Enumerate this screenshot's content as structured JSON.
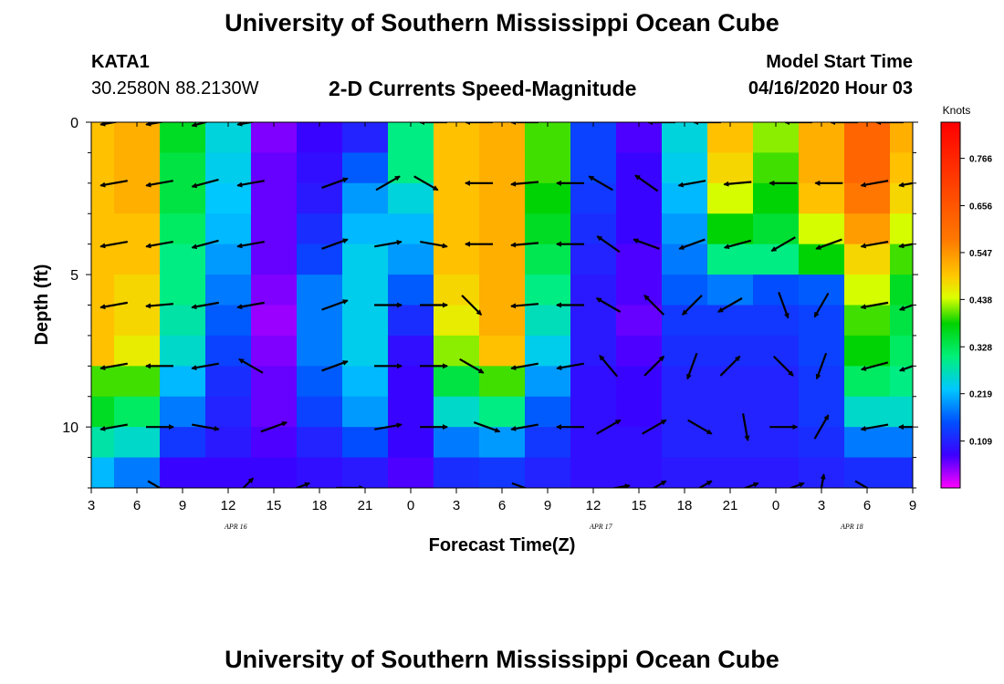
{
  "header": {
    "title": "University of Southern Mississippi Ocean Cube",
    "station": "KATA1",
    "coordinates": "30.2580N 88.2130W",
    "subtitle": "2-D Currents Speed-Magnitude",
    "model_start_label": "Model Start Time",
    "model_start_value": "04/16/2020 Hour 03"
  },
  "footer": {
    "title": "University of Southern Mississippi Ocean Cube"
  },
  "chart_data": {
    "type": "heatmap",
    "title": "2-D Currents Speed-Magnitude",
    "xlabel": "Forecast Time(Z)",
    "ylabel": "Depth (ft)",
    "x_unit": "forecast hour since 04/16/2020 03Z",
    "xlim": [
      0,
      54
    ],
    "ylim": [
      0,
      12
    ],
    "x_ticks": [
      {
        "hour": 0,
        "label": "3"
      },
      {
        "hour": 3,
        "label": "6"
      },
      {
        "hour": 6,
        "label": "9"
      },
      {
        "hour": 9,
        "label": "12"
      },
      {
        "hour": 12,
        "label": "15"
      },
      {
        "hour": 15,
        "label": "18"
      },
      {
        "hour": 18,
        "label": "21"
      },
      {
        "hour": 21,
        "label": "0"
      },
      {
        "hour": 24,
        "label": "3"
      },
      {
        "hour": 27,
        "label": "6"
      },
      {
        "hour": 30,
        "label": "9"
      },
      {
        "hour": 33,
        "label": "12"
      },
      {
        "hour": 36,
        "label": "15"
      },
      {
        "hour": 39,
        "label": "18"
      },
      {
        "hour": 42,
        "label": "21"
      },
      {
        "hour": 45,
        "label": "0"
      },
      {
        "hour": 48,
        "label": "3"
      },
      {
        "hour": 51,
        "label": "6"
      },
      {
        "hour": 54,
        "label": "9"
      }
    ],
    "date_labels": [
      {
        "hour": 9.5,
        "label": "APR 16"
      },
      {
        "hour": 33.5,
        "label": "APR 17"
      },
      {
        "hour": 50,
        "label": "APR 18"
      }
    ],
    "y_ticks": [
      {
        "depth": 0,
        "label": "0"
      },
      {
        "depth": 5,
        "label": "5"
      },
      {
        "depth": 10,
        "label": "10"
      }
    ],
    "colorbar": {
      "label": "Knots",
      "min": 0.0,
      "max": 0.85,
      "ticks": [
        "0.766",
        "0.656",
        "0.547",
        "0.438",
        "0.328",
        "0.219",
        "0.109"
      ],
      "tick_values": [
        0.766,
        0.656,
        0.547,
        0.438,
        0.328,
        0.219,
        0.109
      ]
    },
    "cell_hours": 3,
    "depth_levels": [
      0.5,
      1.5,
      2.5,
      3.5,
      4.5,
      5.5,
      6.5,
      7.5,
      8.5,
      9.5,
      10.5,
      11.5
    ],
    "time_hours": [
      0,
      3,
      6,
      9,
      12,
      15,
      18,
      21,
      24,
      27,
      30,
      33,
      36,
      39,
      42,
      45,
      48,
      51,
      54
    ],
    "speed": [
      [
        0.5,
        0.52,
        0.36,
        0.25,
        0.05,
        0.08,
        0.11,
        0.3,
        0.5,
        0.52,
        0.4,
        0.14,
        0.07,
        0.25,
        0.5,
        0.42,
        0.52,
        0.62,
        0.52
      ],
      [
        0.5,
        0.52,
        0.34,
        0.24,
        0.06,
        0.09,
        0.16,
        0.3,
        0.5,
        0.52,
        0.4,
        0.14,
        0.08,
        0.24,
        0.48,
        0.4,
        0.52,
        0.62,
        0.5
      ],
      [
        0.5,
        0.52,
        0.34,
        0.23,
        0.06,
        0.1,
        0.2,
        0.25,
        0.5,
        0.52,
        0.38,
        0.13,
        0.08,
        0.22,
        0.44,
        0.38,
        0.5,
        0.58,
        0.48
      ],
      [
        0.5,
        0.5,
        0.32,
        0.22,
        0.06,
        0.12,
        0.22,
        0.22,
        0.5,
        0.52,
        0.36,
        0.12,
        0.08,
        0.2,
        0.38,
        0.35,
        0.44,
        0.54,
        0.44
      ],
      [
        0.5,
        0.5,
        0.3,
        0.2,
        0.06,
        0.14,
        0.24,
        0.2,
        0.5,
        0.52,
        0.33,
        0.11,
        0.07,
        0.18,
        0.3,
        0.3,
        0.38,
        0.48,
        0.4
      ],
      [
        0.5,
        0.48,
        0.3,
        0.18,
        0.05,
        0.18,
        0.24,
        0.16,
        0.48,
        0.52,
        0.3,
        0.1,
        0.07,
        0.16,
        0.18,
        0.15,
        0.16,
        0.44,
        0.36
      ],
      [
        0.5,
        0.48,
        0.28,
        0.16,
        0.04,
        0.18,
        0.24,
        0.12,
        0.46,
        0.52,
        0.27,
        0.1,
        0.06,
        0.13,
        0.13,
        0.13,
        0.14,
        0.4,
        0.34
      ],
      [
        0.5,
        0.46,
        0.26,
        0.14,
        0.05,
        0.18,
        0.24,
        0.09,
        0.42,
        0.5,
        0.24,
        0.1,
        0.07,
        0.12,
        0.12,
        0.12,
        0.14,
        0.38,
        0.32
      ],
      [
        0.4,
        0.4,
        0.22,
        0.12,
        0.06,
        0.16,
        0.22,
        0.08,
        0.34,
        0.4,
        0.2,
        0.09,
        0.08,
        0.11,
        0.11,
        0.11,
        0.13,
        0.32,
        0.3
      ],
      [
        0.36,
        0.32,
        0.18,
        0.11,
        0.06,
        0.14,
        0.2,
        0.08,
        0.26,
        0.3,
        0.16,
        0.09,
        0.08,
        0.11,
        0.11,
        0.11,
        0.13,
        0.26,
        0.26
      ],
      [
        0.28,
        0.26,
        0.13,
        0.1,
        0.07,
        0.11,
        0.15,
        0.08,
        0.18,
        0.2,
        0.13,
        0.09,
        0.09,
        0.11,
        0.11,
        0.11,
        0.12,
        0.18,
        0.18
      ],
      [
        0.22,
        0.18,
        0.08,
        0.08,
        0.08,
        0.09,
        0.1,
        0.07,
        0.12,
        0.13,
        0.11,
        0.09,
        0.09,
        0.1,
        0.1,
        0.1,
        0.11,
        0.12,
        0.12
      ]
    ],
    "vectors": [
      {
        "hour": 1.5,
        "depth": 0,
        "angle": 190
      },
      {
        "hour": 4.5,
        "depth": 0,
        "angle": 190
      },
      {
        "hour": 7.5,
        "depth": 0,
        "angle": 195
      },
      {
        "hour": 10.5,
        "depth": 0,
        "angle": 190
      },
      {
        "hour": 22.5,
        "depth": 0,
        "angle": 180
      },
      {
        "hour": 25.5,
        "depth": 0,
        "angle": 180
      },
      {
        "hour": 28.5,
        "depth": 0,
        "angle": 180
      },
      {
        "hour": 37.5,
        "depth": 0,
        "angle": 180
      },
      {
        "hour": 40.5,
        "depth": 0,
        "angle": 180
      },
      {
        "hour": 46.5,
        "depth": 0,
        "angle": 180
      },
      {
        "hour": 49.5,
        "depth": 0,
        "angle": 180
      },
      {
        "hour": 52.5,
        "depth": 0,
        "angle": 180
      },
      {
        "hour": 1.5,
        "depth": 2,
        "angle": 190
      },
      {
        "hour": 4.5,
        "depth": 2,
        "angle": 190
      },
      {
        "hour": 7.5,
        "depth": 2,
        "angle": 195
      },
      {
        "hour": 10.5,
        "depth": 2,
        "angle": 190
      },
      {
        "hour": 16,
        "depth": 2,
        "angle": 20
      },
      {
        "hour": 19.5,
        "depth": 2,
        "angle": 30
      },
      {
        "hour": 22,
        "depth": 2,
        "angle": 330
      },
      {
        "hour": 25.5,
        "depth": 2,
        "angle": 180
      },
      {
        "hour": 28.5,
        "depth": 2,
        "angle": 185
      },
      {
        "hour": 31.5,
        "depth": 2,
        "angle": 180
      },
      {
        "hour": 33.5,
        "depth": 2,
        "angle": 150
      },
      {
        "hour": 36.5,
        "depth": 2,
        "angle": 145
      },
      {
        "hour": 39.5,
        "depth": 2,
        "angle": 190
      },
      {
        "hour": 42.5,
        "depth": 2,
        "angle": 185
      },
      {
        "hour": 45.5,
        "depth": 2,
        "angle": 180
      },
      {
        "hour": 48.5,
        "depth": 2,
        "angle": 180
      },
      {
        "hour": 51.5,
        "depth": 2,
        "angle": 190
      },
      {
        "hour": 54,
        "depth": 2,
        "angle": 190
      },
      {
        "hour": 1.5,
        "depth": 4,
        "angle": 190
      },
      {
        "hour": 4.5,
        "depth": 4,
        "angle": 190
      },
      {
        "hour": 7.5,
        "depth": 4,
        "angle": 195
      },
      {
        "hour": 10.5,
        "depth": 4,
        "angle": 190
      },
      {
        "hour": 16,
        "depth": 4,
        "angle": 20
      },
      {
        "hour": 19.5,
        "depth": 4,
        "angle": 10
      },
      {
        "hour": 22.5,
        "depth": 4,
        "angle": 350
      },
      {
        "hour": 25.5,
        "depth": 4,
        "angle": 180
      },
      {
        "hour": 28.5,
        "depth": 4,
        "angle": 185
      },
      {
        "hour": 31.5,
        "depth": 4,
        "angle": 180
      },
      {
        "hour": 34,
        "depth": 4,
        "angle": 145
      },
      {
        "hour": 36.5,
        "depth": 4,
        "angle": 160
      },
      {
        "hour": 39.5,
        "depth": 4,
        "angle": 200
      },
      {
        "hour": 42.5,
        "depth": 4,
        "angle": 195
      },
      {
        "hour": 45.5,
        "depth": 4,
        "angle": 210
      },
      {
        "hour": 48.5,
        "depth": 4,
        "angle": 200
      },
      {
        "hour": 51.5,
        "depth": 4,
        "angle": 190
      },
      {
        "hour": 54,
        "depth": 4,
        "angle": 190
      },
      {
        "hour": 1.5,
        "depth": 6,
        "angle": 190
      },
      {
        "hour": 4.5,
        "depth": 6,
        "angle": 185
      },
      {
        "hour": 7.5,
        "depth": 6,
        "angle": 190
      },
      {
        "hour": 10.5,
        "depth": 6,
        "angle": 190
      },
      {
        "hour": 16,
        "depth": 6,
        "angle": 20
      },
      {
        "hour": 19.5,
        "depth": 6,
        "angle": 0
      },
      {
        "hour": 22.5,
        "depth": 6,
        "angle": 0
      },
      {
        "hour": 25,
        "depth": 6,
        "angle": 315
      },
      {
        "hour": 28.5,
        "depth": 6,
        "angle": 185
      },
      {
        "hour": 31.5,
        "depth": 6,
        "angle": 180
      },
      {
        "hour": 34,
        "depth": 6,
        "angle": 150
      },
      {
        "hour": 37,
        "depth": 6,
        "angle": 135
      },
      {
        "hour": 39.5,
        "depth": 6,
        "angle": 225
      },
      {
        "hour": 42,
        "depth": 6,
        "angle": 210
      },
      {
        "hour": 45.5,
        "depth": 6,
        "angle": 290
      },
      {
        "hour": 48,
        "depth": 6,
        "angle": 240
      },
      {
        "hour": 51.5,
        "depth": 6,
        "angle": 190
      },
      {
        "hour": 54,
        "depth": 6,
        "angle": 200
      },
      {
        "hour": 1.5,
        "depth": 8,
        "angle": 190
      },
      {
        "hour": 4.5,
        "depth": 8,
        "angle": 180
      },
      {
        "hour": 7.5,
        "depth": 8,
        "angle": 190
      },
      {
        "hour": 10.5,
        "depth": 8,
        "angle": 150
      },
      {
        "hour": 16,
        "depth": 8,
        "angle": 20
      },
      {
        "hour": 19.5,
        "depth": 8,
        "angle": 0
      },
      {
        "hour": 22.5,
        "depth": 8,
        "angle": 0
      },
      {
        "hour": 25,
        "depth": 8,
        "angle": 330
      },
      {
        "hour": 28.5,
        "depth": 8,
        "angle": 190
      },
      {
        "hour": 31.5,
        "depth": 8,
        "angle": 190
      },
      {
        "hour": 34,
        "depth": 8,
        "angle": 130
      },
      {
        "hour": 37,
        "depth": 8,
        "angle": 45
      },
      {
        "hour": 39.5,
        "depth": 8,
        "angle": 250
      },
      {
        "hour": 42,
        "depth": 8,
        "angle": 45
      },
      {
        "hour": 45.5,
        "depth": 8,
        "angle": 315
      },
      {
        "hour": 48,
        "depth": 8,
        "angle": 250
      },
      {
        "hour": 51.5,
        "depth": 8,
        "angle": 195
      },
      {
        "hour": 54,
        "depth": 8,
        "angle": 200
      },
      {
        "hour": 1.5,
        "depth": 10,
        "angle": 190
      },
      {
        "hour": 4.5,
        "depth": 10,
        "angle": 0
      },
      {
        "hour": 7.5,
        "depth": 10,
        "angle": 350
      },
      {
        "hour": 12,
        "depth": 10,
        "angle": 20
      },
      {
        "hour": 19.5,
        "depth": 10,
        "angle": 10
      },
      {
        "hour": 22.5,
        "depth": 10,
        "angle": 0
      },
      {
        "hour": 26,
        "depth": 10,
        "angle": 340
      },
      {
        "hour": 28.5,
        "depth": 10,
        "angle": 190
      },
      {
        "hour": 31.5,
        "depth": 10,
        "angle": 180
      },
      {
        "hour": 34,
        "depth": 10,
        "angle": 30
      },
      {
        "hour": 37,
        "depth": 10,
        "angle": 30
      },
      {
        "hour": 40,
        "depth": 10,
        "angle": 330
      },
      {
        "hour": 43,
        "depth": 10,
        "angle": 280
      },
      {
        "hour": 45.5,
        "depth": 10,
        "angle": 0
      },
      {
        "hour": 48,
        "depth": 10,
        "angle": 60
      },
      {
        "hour": 51.5,
        "depth": 10,
        "angle": 190
      },
      {
        "hour": 54,
        "depth": 10,
        "angle": 180
      },
      {
        "hour": 4.5,
        "depth": 12,
        "angle": 330
      },
      {
        "hour": 10,
        "depth": 12,
        "angle": 45
      },
      {
        "hour": 13.5,
        "depth": 12,
        "angle": 20
      },
      {
        "hour": 17,
        "depth": 12,
        "angle": 0
      },
      {
        "hour": 28.5,
        "depth": 12,
        "angle": 340
      },
      {
        "hour": 34.5,
        "depth": 12,
        "angle": 10
      },
      {
        "hour": 37,
        "depth": 12,
        "angle": 30
      },
      {
        "hour": 40,
        "depth": 12,
        "angle": 30
      },
      {
        "hour": 43,
        "depth": 12,
        "angle": 20
      },
      {
        "hour": 46,
        "depth": 12,
        "angle": 20
      },
      {
        "hour": 48,
        "depth": 12,
        "angle": 80
      },
      {
        "hour": 51,
        "depth": 12,
        "angle": 330
      }
    ]
  }
}
